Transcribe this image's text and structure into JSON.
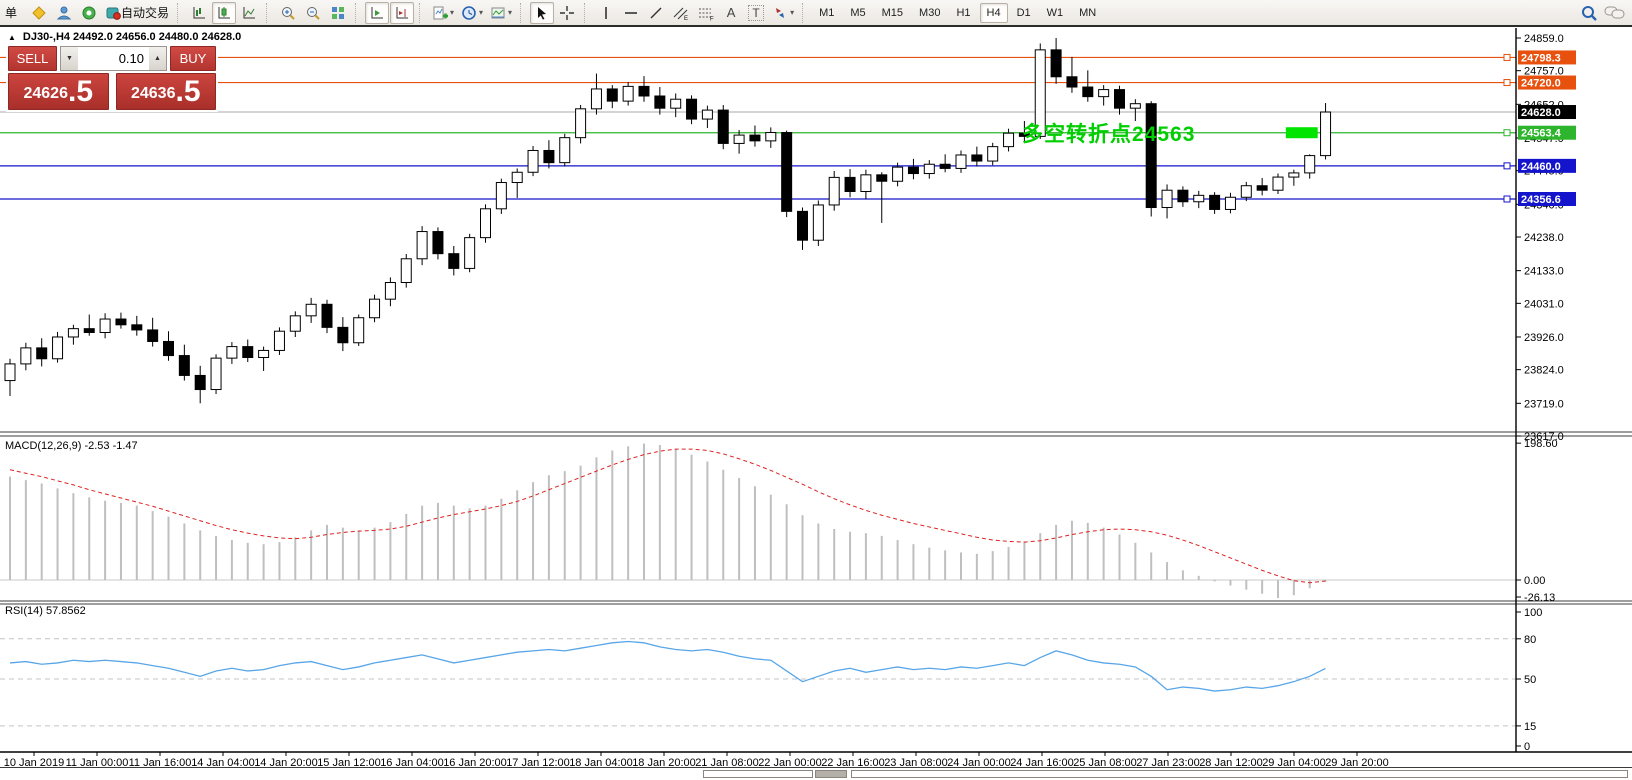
{
  "toolbar": {
    "partial_button_label": "单",
    "autotrading_label": "自动交易",
    "text_tool": "A",
    "label_tool": "T",
    "timeframes": [
      "M1",
      "M5",
      "M15",
      "M30",
      "H1",
      "H4",
      "D1",
      "W1",
      "MN"
    ],
    "active_timeframe": "H4"
  },
  "chart": {
    "title": "DJ30-,H4 24492.0 24656.0 24480.0 24628.0"
  },
  "trade_panel": {
    "sell_label": "SELL",
    "buy_label": "BUY",
    "volume": "0.10",
    "sell_price_main": "24626",
    "sell_price_pips": ".5",
    "buy_price_main": "24636",
    "buy_price_pips": ".5"
  },
  "chart_data": {
    "type": "candlestick",
    "symbol_period": "DJ30-,H4",
    "current_bar": {
      "open": 24492.0,
      "high": 24656.0,
      "low": 24480.0,
      "close": 24628.0
    },
    "price_axis_ticks": [
      24859.0,
      24757.0,
      24652.0,
      24547.0,
      24445.0,
      24340.0,
      24238.0,
      24133.0,
      24031.0,
      23926.0,
      23824.0,
      23719.0,
      23617.0
    ],
    "time_axis_labels": [
      "10 Jan 2019",
      "11 Jan 00:00",
      "11 Jan 16:00",
      "14 Jan 04:00",
      "14 Jan 20:00",
      "15 Jan 12:00",
      "16 Jan 04:00",
      "16 Jan 20:00",
      "17 Jan 12:00",
      "18 Jan 04:00",
      "18 Jan 20:00",
      "21 Jan 08:00",
      "22 Jan 00:00",
      "22 Jan 16:00",
      "23 Jan 08:00",
      "24 Jan 00:00",
      "24 Jan 16:00",
      "25 Jan 08:00",
      "27 Jan 23:00",
      "28 Jan 12:00",
      "29 Jan 04:00",
      "29 Jan 20:00"
    ],
    "candles": [
      [
        23790,
        23858,
        23742,
        23842
      ],
      [
        23842,
        23908,
        23822,
        23892
      ],
      [
        23892,
        23922,
        23834,
        23858
      ],
      [
        23858,
        23942,
        23846,
        23926
      ],
      [
        23926,
        23964,
        23902,
        23952
      ],
      [
        23952,
        23996,
        23930,
        23940
      ],
      [
        23940,
        24000,
        23922,
        23982
      ],
      [
        23982,
        24002,
        23952,
        23964
      ],
      [
        23964,
        23992,
        23930,
        23948
      ],
      [
        23948,
        23986,
        23896,
        23912
      ],
      [
        23912,
        23944,
        23852,
        23868
      ],
      [
        23868,
        23902,
        23790,
        23806
      ],
      [
        23806,
        23836,
        23719,
        23762
      ],
      [
        23762,
        23872,
        23748,
        23860
      ],
      [
        23860,
        23910,
        23842,
        23896
      ],
      [
        23896,
        23918,
        23848,
        23862
      ],
      [
        23862,
        23896,
        23820,
        23884
      ],
      [
        23884,
        23956,
        23870,
        23944
      ],
      [
        23944,
        24006,
        23926,
        23992
      ],
      [
        23992,
        24048,
        23970,
        24028
      ],
      [
        24028,
        24042,
        23938,
        23956
      ],
      [
        23956,
        23988,
        23882,
        23908
      ],
      [
        23908,
        23996,
        23898,
        23986
      ],
      [
        23986,
        24058,
        23972,
        24044
      ],
      [
        24044,
        24112,
        24022,
        24096
      ],
      [
        24096,
        24185,
        24080,
        24170
      ],
      [
        24170,
        24272,
        24150,
        24255
      ],
      [
        24255,
        24268,
        24168,
        24186
      ],
      [
        24186,
        24210,
        24118,
        24140
      ],
      [
        24140,
        24248,
        24128,
        24236
      ],
      [
        24236,
        24340,
        24220,
        24326
      ],
      [
        24326,
        24420,
        24310,
        24408
      ],
      [
        24408,
        24452,
        24360,
        24440
      ],
      [
        24440,
        24522,
        24428,
        24508
      ],
      [
        24508,
        24540,
        24452,
        24470
      ],
      [
        24470,
        24560,
        24458,
        24548
      ],
      [
        24548,
        24650,
        24530,
        24638
      ],
      [
        24638,
        24748,
        24620,
        24700
      ],
      [
        24700,
        24712,
        24640,
        24662
      ],
      [
        24662,
        24722,
        24648,
        24708
      ],
      [
        24708,
        24740,
        24660,
        24678
      ],
      [
        24678,
        24706,
        24620,
        24640
      ],
      [
        24640,
        24686,
        24612,
        24668
      ],
      [
        24668,
        24680,
        24590,
        24606
      ],
      [
        24606,
        24648,
        24578,
        24634
      ],
      [
        24634,
        24650,
        24512,
        24530
      ],
      [
        24530,
        24572,
        24498,
        24556
      ],
      [
        24556,
        24586,
        24520,
        24538
      ],
      [
        24538,
        24580,
        24516,
        24564
      ],
      [
        24564,
        24570,
        24300,
        24318
      ],
      [
        24318,
        24330,
        24198,
        24228
      ],
      [
        24228,
        24352,
        24210,
        24338
      ],
      [
        24338,
        24444,
        24320,
        24424
      ],
      [
        24424,
        24450,
        24362,
        24380
      ],
      [
        24380,
        24448,
        24356,
        24432
      ],
      [
        24432,
        24440,
        24282,
        24412
      ],
      [
        24412,
        24470,
        24396,
        24456
      ],
      [
        24456,
        24482,
        24418,
        24436
      ],
      [
        24436,
        24478,
        24420,
        24465
      ],
      [
        24465,
        24496,
        24440,
        24452
      ],
      [
        24452,
        24508,
        24438,
        24494
      ],
      [
        24494,
        24520,
        24458,
        24475
      ],
      [
        24475,
        24532,
        24462,
        24520
      ],
      [
        24520,
        24576,
        24505,
        24562
      ],
      [
        24562,
        24600,
        24536,
        24552
      ],
      [
        24552,
        24842,
        24544,
        24822
      ],
      [
        24822,
        24859,
        24716,
        24738
      ],
      [
        24738,
        24800,
        24688,
        24706
      ],
      [
        24706,
        24758,
        24660,
        24676
      ],
      [
        24676,
        24712,
        24648,
        24698
      ],
      [
        24698,
        24710,
        24620,
        24640
      ],
      [
        24640,
        24668,
        24600,
        24654
      ],
      [
        24654,
        24662,
        24302,
        24330
      ],
      [
        24330,
        24402,
        24296,
        24384
      ],
      [
        24384,
        24396,
        24332,
        24348
      ],
      [
        24348,
        24382,
        24328,
        24368
      ],
      [
        24368,
        24378,
        24310,
        24324
      ],
      [
        24324,
        24376,
        24312,
        24362
      ],
      [
        24362,
        24410,
        24350,
        24398
      ],
      [
        24398,
        24422,
        24368,
        24384
      ],
      [
        24384,
        24436,
        24372,
        24425
      ],
      [
        24425,
        24448,
        24398,
        24438
      ],
      [
        24438,
        24496,
        24420,
        24492
      ],
      [
        24492,
        24656,
        24480,
        24628
      ]
    ],
    "hlines": [
      {
        "price": 24798.3,
        "color": "#E8500E",
        "badge_bg": "#E8500E",
        "badge_fg": "#FFFFFF",
        "marker": true
      },
      {
        "price": 24720.0,
        "color": "#E8500E",
        "badge_bg": "#E8500E",
        "badge_fg": "#FFFFFF",
        "marker": true
      },
      {
        "price": 24628.0,
        "color": "#BBBBBB",
        "badge_bg": "#000000",
        "badge_fg": "#FFFFFF",
        "marker": false
      },
      {
        "price": 24563.4,
        "color": "#2DB52D",
        "badge_bg": "#2DB52D",
        "badge_fg": "#FFFFFF",
        "marker": true
      },
      {
        "price": 24460.0,
        "color": "#1414CC",
        "badge_bg": "#1414CC",
        "badge_fg": "#FFFFFF",
        "marker": true
      },
      {
        "price": 24356.6,
        "color": "#1414CC",
        "badge_bg": "#1414CC",
        "badge_fg": "#FFFFFF",
        "marker": true
      }
    ],
    "highlight_rect": {
      "price": 24563.4,
      "start_index": 81,
      "end_index": 82,
      "pad": 8,
      "height": 11,
      "color": "#00E400"
    },
    "annotation": {
      "text": "多空转折点24563",
      "color": "#00CE00",
      "price": 24563.4
    },
    "macd": {
      "label": "MACD(12,26,9) -2.53 -1.47",
      "axis_ticks": [
        198.6,
        0.0,
        -26.13
      ],
      "range": [
        -26.13,
        198.6
      ],
      "main": [
        150,
        145,
        140,
        133,
        126,
        120,
        115,
        112,
        108,
        100,
        92,
        82,
        72,
        64,
        58,
        54,
        52,
        55,
        62,
        72,
        80,
        76,
        72,
        76,
        84,
        96,
        108,
        112,
        108,
        104,
        108,
        118,
        130,
        142,
        152,
        158,
        166,
        178,
        188,
        194,
        198,
        196,
        190,
        182,
        172,
        160,
        148,
        136,
        124,
        110,
        94,
        82,
        74,
        70,
        68,
        64,
        58,
        52,
        47,
        43,
        40,
        38,
        42,
        48,
        56,
        68,
        80,
        86,
        83,
        76,
        66,
        54,
        40,
        26,
        14,
        6,
        -2,
        -8,
        -14,
        -20,
        -26.13,
        -22,
        -12,
        -2.53
      ],
      "signal": [
        160,
        155,
        150,
        144,
        138,
        131,
        125,
        119,
        113,
        107,
        100,
        93,
        86,
        79,
        73,
        68,
        64,
        61,
        60,
        62,
        66,
        69,
        71,
        72,
        74,
        78,
        84,
        90,
        95,
        99,
        103,
        108,
        114,
        122,
        131,
        140,
        149,
        158,
        167,
        175,
        182,
        187,
        190,
        190,
        188,
        183,
        176,
        168,
        159,
        149,
        139,
        128,
        118,
        109,
        101,
        94,
        88,
        82,
        77,
        72,
        67,
        62,
        58,
        56,
        55,
        57,
        61,
        66,
        70,
        73,
        74,
        73,
        70,
        65,
        58,
        50,
        41,
        32,
        23,
        14,
        6,
        -1,
        -4,
        -1.47
      ],
      "main_color": "#BFBFBF",
      "signal_color": "#DD2222"
    },
    "rsi": {
      "label": "RSI(14) 57.8562",
      "axis_ticks": [
        100,
        80,
        50,
        15,
        0
      ],
      "levels": [
        80,
        50,
        15
      ],
      "range": [
        0,
        100
      ],
      "color": "#58A6E8",
      "values": [
        62,
        63,
        61,
        62,
        64,
        63,
        64,
        63,
        62,
        60,
        58,
        55,
        52,
        56,
        58,
        56,
        57,
        60,
        62,
        63,
        60,
        57,
        59,
        62,
        64,
        66,
        68,
        65,
        62,
        64,
        66,
        68,
        70,
        71,
        72,
        71,
        73,
        75,
        77,
        78,
        77,
        74,
        72,
        71,
        72,
        70,
        67,
        65,
        64,
        56,
        48,
        52,
        56,
        58,
        55,
        57,
        59,
        57,
        58,
        57,
        59,
        58,
        60,
        62,
        60,
        66,
        71,
        68,
        64,
        62,
        61,
        59,
        52,
        42,
        44,
        43,
        41,
        42,
        44,
        43,
        45,
        48,
        52,
        57.86
      ]
    }
  }
}
